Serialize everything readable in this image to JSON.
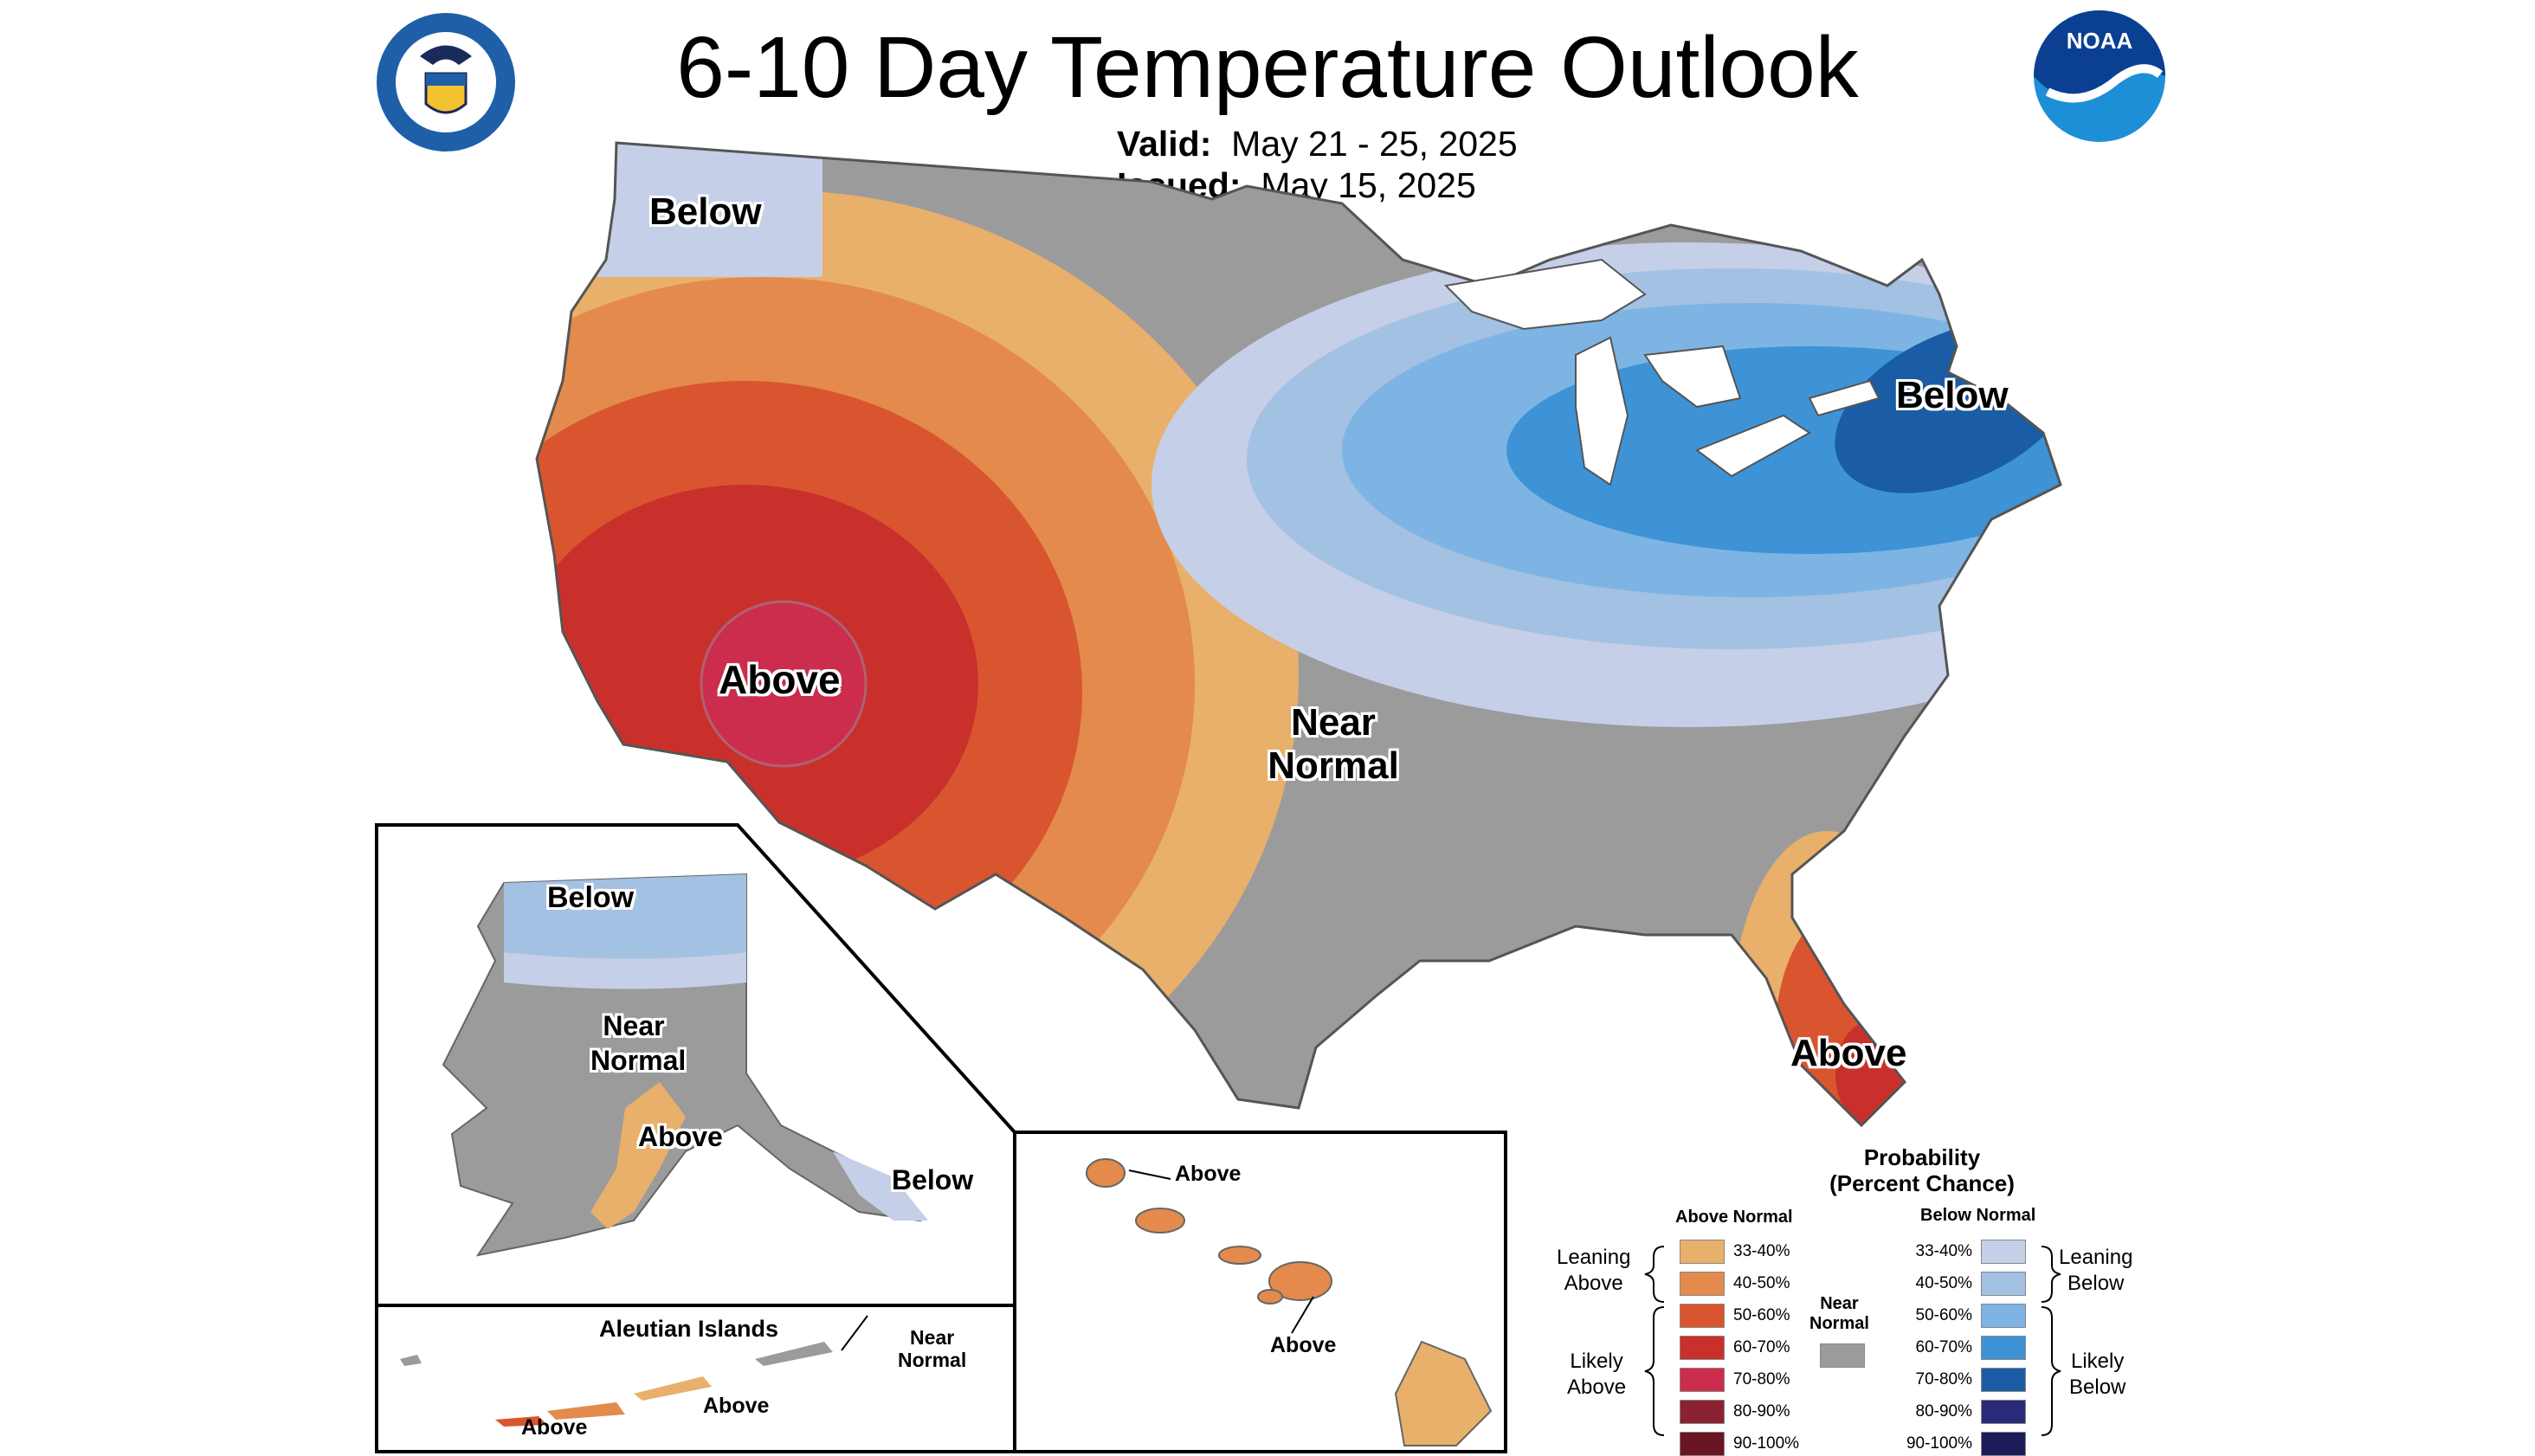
{
  "title": "6-10 Day Temperature Outlook",
  "valid_label": "Valid:",
  "valid_value": "May 21 - 25, 2025",
  "issued_label": "Issued:",
  "issued_value": "May 15, 2025",
  "logos": {
    "commerce": "doc-seal-icon",
    "noaa": "noaa-logo-icon",
    "noaa_text": "NOAA"
  },
  "map_labels": {
    "nw_below": "Below",
    "sw_above": "Above",
    "near_normal_1": "Near",
    "near_normal_2": "Normal",
    "ne_below": "Below",
    "fl_above": "Above"
  },
  "alaska": {
    "below_north": "Below",
    "near_1": "Near",
    "near_2": "Normal",
    "above": "Above",
    "below_se": "Below"
  },
  "aleutians": {
    "title": "Aleutian Islands",
    "near_1": "Near",
    "near_2": "Normal",
    "above_1": "Above",
    "above_2": "Above"
  },
  "hawaii": {
    "above_1": "Above",
    "above_2": "Above"
  },
  "legend": {
    "title_1": "Probability",
    "title_2": "(Percent Chance)",
    "above_header": "Above Normal",
    "below_header": "Below Normal",
    "near_header_1": "Near",
    "near_header_2": "Normal",
    "leaning_above_1": "Leaning",
    "leaning_above_2": "Above",
    "likely_above_1": "Likely",
    "likely_above_2": "Above",
    "leaning_below_1": "Leaning",
    "leaning_below_2": "Below",
    "likely_below_1": "Likely",
    "likely_below_2": "Below",
    "above_rows": [
      {
        "label": "33-40%",
        "color": "#e8b06a"
      },
      {
        "label": "40-50%",
        "color": "#e38a4c"
      },
      {
        "label": "50-60%",
        "color": "#d9552f"
      },
      {
        "label": "60-70%",
        "color": "#c9302c"
      },
      {
        "label": "70-80%",
        "color": "#cc2d4d"
      },
      {
        "label": "80-90%",
        "color": "#8b2232"
      },
      {
        "label": "90-100%",
        "color": "#6a1522"
      }
    ],
    "below_rows": [
      {
        "label": "33-40%",
        "color": "#c5cfe8"
      },
      {
        "label": "40-50%",
        "color": "#a3c1e2"
      },
      {
        "label": "50-60%",
        "color": "#7db4e4"
      },
      {
        "label": "60-70%",
        "color": "#3e93d6"
      },
      {
        "label": "70-80%",
        "color": "#1a5ca5"
      },
      {
        "label": "80-90%",
        "color": "#2a2a7a"
      },
      {
        "label": "90-100%",
        "color": "#1c1b5a"
      }
    ],
    "near_color": "#9b9b9b"
  },
  "colors": {
    "near": "#9b9b9b",
    "lean_above": "#e8b06a",
    "a40": "#e38a4c",
    "a50": "#d9552f",
    "a60": "#c9302c",
    "a70": "#cc2d4d",
    "lean_below": "#c5cfe8",
    "b40": "#a3c1e2",
    "b50": "#7db4e4",
    "b60": "#3e93d6",
    "b70": "#1a5ca5"
  }
}
